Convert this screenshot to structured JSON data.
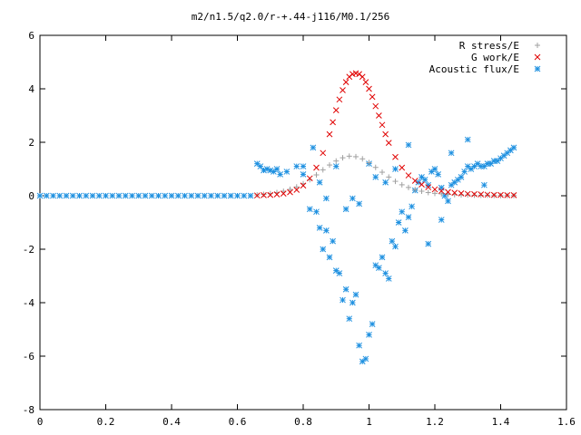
{
  "chart_data": {
    "type": "scatter",
    "title": "m2/n1.5/q2.0/r-+.44-j116/M0.1/256",
    "xlabel": "",
    "ylabel": "",
    "xlim": [
      0,
      1.6
    ],
    "ylim": [
      -8,
      6
    ],
    "xticks": [
      "0",
      "0.2",
      "0.4",
      "0.6",
      "0.8",
      "1",
      "1.2",
      "1.4",
      "1.6"
    ],
    "yticks": [
      "-8",
      "-6",
      "-4",
      "-2",
      "0",
      "2",
      "4",
      "6"
    ],
    "grid": false,
    "legend_position": "top-right",
    "series": [
      {
        "name": "R stress/E",
        "marker": "plus",
        "color": "#a0a0a0",
        "x": [
          0.66,
          0.68,
          0.7,
          0.72,
          0.74,
          0.76,
          0.78,
          0.8,
          0.82,
          0.84,
          0.86,
          0.88,
          0.9,
          0.92,
          0.94,
          0.96,
          0.98,
          1.0,
          1.02,
          1.04,
          1.06,
          1.08,
          1.1,
          1.12,
          1.14,
          1.16,
          1.18,
          1.2,
          1.22,
          1.24,
          1.26,
          1.28,
          1.3,
          1.32,
          1.34,
          1.36,
          1.38,
          1.4,
          1.42,
          1.44
        ],
        "y": [
          0.03,
          0.05,
          0.08,
          0.12,
          0.17,
          0.24,
          0.33,
          0.45,
          0.6,
          0.78,
          0.97,
          1.15,
          1.3,
          1.42,
          1.48,
          1.46,
          1.38,
          1.24,
          1.06,
          0.88,
          0.7,
          0.54,
          0.41,
          0.31,
          0.23,
          0.17,
          0.12,
          0.09,
          0.07,
          0.05,
          0.04,
          0.03,
          0.03,
          0.02,
          0.02,
          0.02,
          0.01,
          0.01,
          0.01,
          0.01
        ]
      },
      {
        "name": "G work/E",
        "marker": "cross",
        "color": "#e00000",
        "x": [
          0.66,
          0.68,
          0.7,
          0.72,
          0.74,
          0.76,
          0.78,
          0.8,
          0.82,
          0.84,
          0.86,
          0.88,
          0.89,
          0.9,
          0.91,
          0.92,
          0.93,
          0.94,
          0.95,
          0.96,
          0.97,
          0.98,
          0.99,
          1.0,
          1.01,
          1.02,
          1.03,
          1.04,
          1.05,
          1.06,
          1.08,
          1.1,
          1.12,
          1.14,
          1.16,
          1.18,
          1.2,
          1.22,
          1.24,
          1.26,
          1.28,
          1.3,
          1.32,
          1.34,
          1.36,
          1.38,
          1.4,
          1.42,
          1.44
        ],
        "y": [
          0.01,
          0.02,
          0.03,
          0.05,
          0.08,
          0.13,
          0.22,
          0.38,
          0.65,
          1.05,
          1.6,
          2.3,
          2.75,
          3.2,
          3.6,
          3.95,
          4.25,
          4.45,
          4.55,
          4.58,
          4.55,
          4.45,
          4.25,
          4.0,
          3.7,
          3.35,
          3.0,
          2.65,
          2.3,
          1.98,
          1.45,
          1.05,
          0.76,
          0.56,
          0.42,
          0.32,
          0.24,
          0.18,
          0.14,
          0.11,
          0.09,
          0.07,
          0.06,
          0.05,
          0.04,
          0.03,
          0.03,
          0.02,
          0.02
        ]
      },
      {
        "name": "Acoustic flux/E",
        "marker": "star",
        "color": "#1e90e0",
        "x": [
          0.0,
          0.02,
          0.04,
          0.06,
          0.08,
          0.1,
          0.12,
          0.14,
          0.16,
          0.18,
          0.2,
          0.22,
          0.24,
          0.26,
          0.28,
          0.3,
          0.32,
          0.34,
          0.36,
          0.38,
          0.4,
          0.42,
          0.44,
          0.46,
          0.48,
          0.5,
          0.52,
          0.54,
          0.56,
          0.58,
          0.6,
          0.62,
          0.64,
          0.66,
          0.67,
          0.68,
          0.69,
          0.7,
          0.71,
          0.72,
          0.73,
          0.75,
          0.78,
          0.8,
          0.82,
          0.84,
          0.85,
          0.86,
          0.87,
          0.88,
          0.89,
          0.9,
          0.91,
          0.92,
          0.93,
          0.94,
          0.95,
          0.96,
          0.97,
          0.98,
          0.99,
          1.0,
          1.01,
          1.02,
          1.03,
          1.04,
          1.05,
          1.06,
          1.07,
          1.08,
          1.09,
          1.1,
          1.11,
          1.12,
          1.13,
          1.14,
          1.15,
          1.16,
          1.17,
          1.18,
          1.19,
          1.2,
          1.21,
          1.22,
          1.23,
          1.24,
          1.25,
          1.26,
          1.27,
          1.28,
          1.29,
          1.3,
          1.31,
          1.32,
          1.33,
          1.34,
          1.35,
          1.36,
          1.37,
          1.38,
          1.39,
          1.4,
          1.41,
          1.42,
          1.43,
          1.44,
          0.8,
          0.83,
          0.85,
          0.87,
          0.9,
          0.93,
          0.95,
          0.97,
          1.0,
          1.02,
          1.05,
          1.08,
          1.12,
          1.18,
          1.22,
          1.25,
          1.3,
          1.35
        ],
        "y": [
          0,
          0,
          0,
          0,
          0,
          0,
          0,
          0,
          0,
          0,
          0,
          0,
          0,
          0,
          0,
          0,
          0,
          0,
          0,
          0,
          0,
          0,
          0,
          0,
          0,
          0,
          0,
          0,
          0,
          0,
          0,
          0,
          0,
          1.2,
          1.1,
          0.95,
          1.0,
          0.95,
          0.9,
          1.0,
          0.8,
          0.9,
          1.1,
          0.8,
          -0.5,
          -0.6,
          -1.2,
          -2.0,
          -1.3,
          -2.3,
          -1.7,
          -2.8,
          -2.9,
          -3.9,
          -3.5,
          -4.6,
          -4.0,
          -3.7,
          -5.6,
          -6.2,
          -6.1,
          -5.2,
          -4.8,
          -2.6,
          -2.7,
          -2.3,
          -2.9,
          -3.1,
          -1.7,
          -1.9,
          -1.0,
          -0.6,
          -1.3,
          -0.8,
          -0.4,
          0.2,
          0.5,
          0.7,
          0.6,
          0.4,
          0.9,
          1.0,
          0.8,
          0.3,
          0.0,
          -0.2,
          0.4,
          0.5,
          0.6,
          0.7,
          0.9,
          1.1,
          1.0,
          1.1,
          1.2,
          1.1,
          1.1,
          1.2,
          1.2,
          1.3,
          1.3,
          1.4,
          1.5,
          1.6,
          1.7,
          1.8,
          1.1,
          1.8,
          0.5,
          -0.1,
          1.1,
          -0.5,
          -0.1,
          -0.3,
          1.2,
          0.7,
          0.5,
          1.0,
          1.9,
          -1.8,
          -0.9,
          1.6,
          2.1,
          0.4
        ]
      }
    ]
  }
}
